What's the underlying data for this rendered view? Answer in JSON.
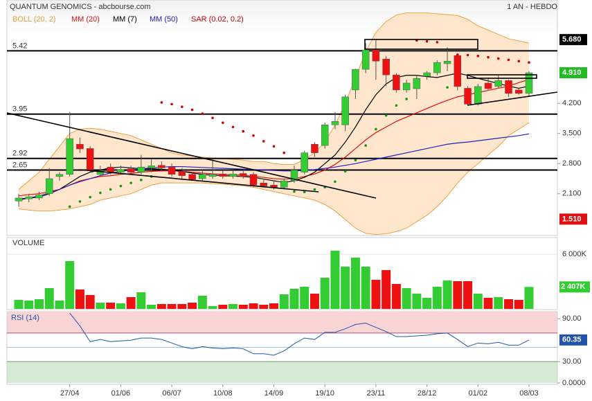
{
  "chart_data": [
    {
      "type": "candlestick",
      "title": "QUANTUM GENOMICS - abcbourse.com",
      "subtitle": "1 AN - HEBDO",
      "categories": [
        null,
        null,
        null,
        null,
        null,
        "27/04",
        null,
        null,
        null,
        null,
        "01/06",
        null,
        null,
        null,
        null,
        "06/07",
        null,
        null,
        null,
        null,
        "10/08",
        null,
        null,
        null,
        null,
        "14/09",
        null,
        null,
        null,
        null,
        "19/10",
        null,
        null,
        null,
        null,
        "23/11",
        null,
        null,
        null,
        null,
        "28/12",
        null,
        null,
        null,
        null,
        "01/02",
        null,
        null,
        null,
        null,
        "08/03"
      ],
      "open": [
        1.93,
        1.98,
        2.0,
        2.1,
        2.5,
        2.55,
        3.25,
        3.15,
        2.55,
        2.72,
        2.6,
        2.68,
        2.6,
        2.7,
        2.76,
        2.72,
        2.62,
        2.55,
        2.45,
        2.5,
        2.56,
        2.5,
        2.57,
        2.55,
        2.35,
        2.3,
        2.25,
        2.4,
        2.6,
        3.25,
        3.22,
        3.7,
        3.7,
        4.51,
        4.99,
        5.44,
        5.23,
        4.86,
        4.51,
        4.54,
        4.83,
        4.91,
        5.12,
        5.31,
        4.55,
        4.18,
        4.67,
        4.59,
        4.73,
        4.51,
        4.43
      ],
      "high": [
        2.1,
        2.1,
        2.15,
        2.7,
        2.6,
        4.0,
        3.4,
        3.2,
        2.75,
        2.8,
        2.75,
        2.75,
        3.0,
        2.9,
        2.85,
        2.8,
        2.7,
        2.6,
        2.65,
        2.9,
        2.65,
        2.65,
        2.65,
        2.6,
        2.45,
        2.4,
        2.45,
        2.75,
        3.1,
        3.3,
        3.75,
        4.0,
        4.4,
        5.0,
        5.6,
        5.68,
        5.3,
        4.9,
        4.75,
        4.85,
        4.95,
        5.2,
        5.5,
        5.35,
        4.6,
        4.65,
        4.8,
        4.85,
        4.75,
        4.55,
        4.95
      ],
      "low": [
        1.8,
        1.9,
        1.95,
        2.05,
        2.4,
        2.5,
        3.05,
        2.6,
        2.5,
        2.55,
        2.55,
        2.55,
        2.55,
        2.6,
        2.65,
        2.5,
        2.45,
        2.4,
        2.4,
        2.45,
        2.45,
        2.45,
        2.45,
        2.25,
        2.25,
        2.2,
        2.2,
        2.35,
        2.55,
        2.95,
        3.15,
        3.6,
        3.55,
        4.3,
        4.9,
        4.75,
        4.6,
        4.45,
        4.45,
        4.3,
        4.75,
        4.85,
        4.95,
        4.5,
        4.15,
        4.15,
        4.5,
        4.55,
        4.35,
        4.4,
        4.35
      ],
      "close": [
        2.0,
        2.03,
        2.07,
        2.45,
        2.55,
        3.38,
        3.14,
        2.65,
        2.62,
        2.6,
        2.66,
        2.6,
        2.72,
        2.75,
        2.7,
        2.55,
        2.52,
        2.43,
        2.55,
        2.55,
        2.5,
        2.56,
        2.5,
        2.3,
        2.28,
        2.25,
        2.4,
        2.65,
        3.05,
        3.05,
        3.7,
        3.78,
        4.35,
        4.99,
        5.44,
        5.18,
        4.86,
        4.51,
        4.67,
        4.78,
        4.91,
        5.15,
        5.18,
        4.59,
        4.18,
        4.59,
        4.54,
        4.73,
        4.43,
        4.43,
        4.91
      ],
      "up_color": "#33cc33",
      "down_color": "#ee1111",
      "bollinger": {
        "name": "BOLL (20, 2)",
        "color": "#f0a040",
        "fill": "#fde6cc",
        "upper": [
          2.2,
          2.4,
          2.6,
          2.9,
          3.2,
          3.5,
          3.6,
          3.62,
          3.6,
          3.55,
          3.5,
          3.45,
          3.35,
          3.25,
          3.15,
          3.05,
          3.0,
          2.98,
          2.95,
          2.93,
          2.92,
          2.9,
          2.88,
          2.85,
          2.85,
          2.8,
          2.78,
          2.78,
          2.9,
          3.05,
          3.3,
          3.7,
          4.2,
          4.8,
          5.4,
          5.85,
          6.1,
          6.25,
          6.3,
          6.3,
          6.3,
          6.28,
          6.26,
          6.24,
          6.15,
          6.0,
          5.9,
          5.8,
          5.7,
          5.65,
          5.6
        ],
        "lower": [
          1.75,
          1.72,
          1.7,
          1.7,
          1.72,
          1.75,
          1.8,
          1.85,
          1.95,
          2.0,
          2.05,
          2.1,
          2.2,
          2.3,
          2.35,
          2.35,
          2.35,
          2.35,
          2.35,
          2.33,
          2.32,
          2.3,
          2.28,
          2.25,
          2.2,
          2.15,
          2.1,
          2.05,
          2.0,
          1.95,
          1.85,
          1.7,
          1.5,
          1.3,
          1.18,
          1.15,
          1.17,
          1.22,
          1.3,
          1.45,
          1.6,
          1.8,
          2.05,
          2.35,
          2.6,
          2.8,
          3.0,
          3.2,
          3.45,
          3.6,
          3.75
        ]
      },
      "series": [
        {
          "name": "MM (20)",
          "color": "#e01010",
          "values": [
            2.05,
            2.08,
            2.1,
            2.15,
            2.2,
            2.3,
            2.4,
            2.45,
            2.5,
            2.52,
            2.55,
            2.57,
            2.6,
            2.62,
            2.63,
            2.63,
            2.62,
            2.6,
            2.58,
            2.56,
            2.55,
            2.54,
            2.53,
            2.5,
            2.48,
            2.45,
            2.44,
            2.45,
            2.5,
            2.56,
            2.65,
            2.78,
            2.95,
            3.15,
            3.35,
            3.52,
            3.65,
            3.78,
            3.88,
            3.98,
            4.08,
            4.18,
            4.27,
            4.35,
            4.4,
            4.45,
            4.5,
            4.55,
            4.6,
            4.68,
            4.75
          ]
        },
        {
          "name": "MM (7)",
          "color": "#000000",
          "values": [
            1.98,
            2.0,
            2.02,
            2.1,
            2.2,
            2.35,
            2.5,
            2.6,
            2.65,
            2.7,
            2.72,
            2.7,
            2.68,
            2.68,
            2.67,
            2.65,
            2.62,
            2.58,
            2.55,
            2.53,
            2.52,
            2.51,
            2.5,
            2.48,
            2.44,
            2.4,
            2.36,
            2.4,
            2.48,
            2.6,
            2.8,
            3.0,
            3.3,
            3.65,
            4.05,
            4.4,
            4.65,
            4.8,
            4.85,
            4.85,
            4.82,
            4.8,
            4.85,
            4.9,
            4.85,
            4.78,
            4.72,
            4.66,
            4.6,
            4.55,
            4.6
          ]
        },
        {
          "name": "MM (50)",
          "color": "#2020c0",
          "values": [
            1.95,
            2.0,
            2.05,
            2.12,
            2.2,
            2.3,
            2.38,
            2.45,
            2.52,
            2.58,
            2.62,
            2.65,
            2.68,
            2.7,
            2.72,
            2.73,
            2.73,
            2.72,
            2.71,
            2.7,
            2.69,
            2.68,
            2.67,
            2.66,
            2.65,
            2.64,
            2.63,
            2.63,
            2.64,
            2.66,
            2.69,
            2.72,
            2.76,
            2.8,
            2.85,
            2.9,
            2.95,
            3.0,
            3.05,
            3.1,
            3.15,
            3.2,
            3.25,
            3.28,
            3.3,
            3.33,
            3.36,
            3.39,
            3.42,
            3.45,
            3.49
          ]
        }
      ],
      "sar": {
        "name": "SAR (0.02, 0.2)",
        "color": "#cc0000",
        "below_color": "#119911",
        "values": [
          null,
          null,
          null,
          null,
          null,
          1.8,
          1.92,
          2.02,
          2.12,
          2.2,
          2.28,
          2.35,
          2.42,
          2.5,
          4.22,
          4.18,
          4.12,
          4.05,
          3.96,
          3.86,
          3.75,
          3.65,
          3.55,
          3.45,
          3.32,
          3.2,
          3.05,
          2.15,
          2.14,
          2.2,
          2.25,
          2.38,
          2.62,
          2.88,
          3.22,
          3.6,
          3.92,
          4.15,
          4.3,
          5.66,
          5.64,
          5.62,
          4.57,
          5.33,
          5.32,
          5.3,
          5.27,
          5.24,
          5.21,
          5.18,
          5.15
        ]
      },
      "ylim": [
        1.13,
        6.6
      ],
      "yticks": [
        {
          "value": 2.1,
          "label": "2.100"
        },
        {
          "value": 2.8,
          "label": "2.800"
        },
        {
          "value": 3.5,
          "label": "3.500"
        },
        {
          "value": 4.2,
          "label": "4.200"
        }
      ],
      "levels": [
        {
          "value": 5.42,
          "label": "5.42"
        },
        {
          "value": 3.95,
          "label": "3.95"
        },
        {
          "value": 2.92,
          "label": "2.92"
        },
        {
          "value": 2.65,
          "label": "2.65"
        }
      ],
      "markers": [
        {
          "value": 5.68,
          "label": "5.680",
          "color": "#000000"
        },
        {
          "value": 4.91,
          "label": "4.910",
          "color": "#22bb22"
        },
        {
          "value": 1.51,
          "label": "1.510",
          "color": "#dd1111"
        }
      ]
    },
    {
      "type": "bar",
      "title": "VOLUME",
      "values": [
        988,
        912,
        1064,
        2280,
        912,
        5244,
        2128,
        1520,
        684,
        684,
        608,
        1292,
        1824,
        456,
        532,
        532,
        532,
        684,
        1444,
        304,
        456,
        532,
        456,
        608,
        456,
        608,
        1596,
        2204,
        2432,
        1672,
        3420,
        6384,
        4636,
        5624,
        4636,
        3192,
        4256,
        2736,
        2280,
        1672,
        1216,
        2432,
        3116,
        3040,
        3040,
        1672,
        1216,
        1292,
        1064,
        988,
        2407
      ],
      "last_value_label": "2 407K",
      "ylim": [
        0,
        7830
      ],
      "yticks": [
        {
          "value": 6000,
          "label": "6 000K"
        }
      ]
    },
    {
      "type": "line",
      "title": "RSI (14)",
      "color": "#2255aa",
      "values": [
        null,
        null,
        null,
        null,
        null,
        98,
        80,
        58,
        61,
        58,
        59,
        60,
        63,
        63,
        61,
        56,
        51,
        48,
        51,
        49,
        48,
        49,
        48,
        41,
        41,
        39,
        45,
        55,
        63,
        61,
        71,
        71,
        76,
        82,
        84,
        78,
        72,
        65,
        65,
        66,
        67,
        69,
        70,
        61,
        51,
        56,
        55,
        57,
        53,
        53,
        60.35
      ],
      "overbought": 70,
      "oversold": 30,
      "midline": 50,
      "ylim": [
        0,
        100
      ],
      "yticks": [
        {
          "value": 90,
          "label": "90.00"
        },
        {
          "value": 30,
          "label": "30.00"
        },
        {
          "value": 0,
          "label": "0.0000"
        }
      ]
    }
  ]
}
